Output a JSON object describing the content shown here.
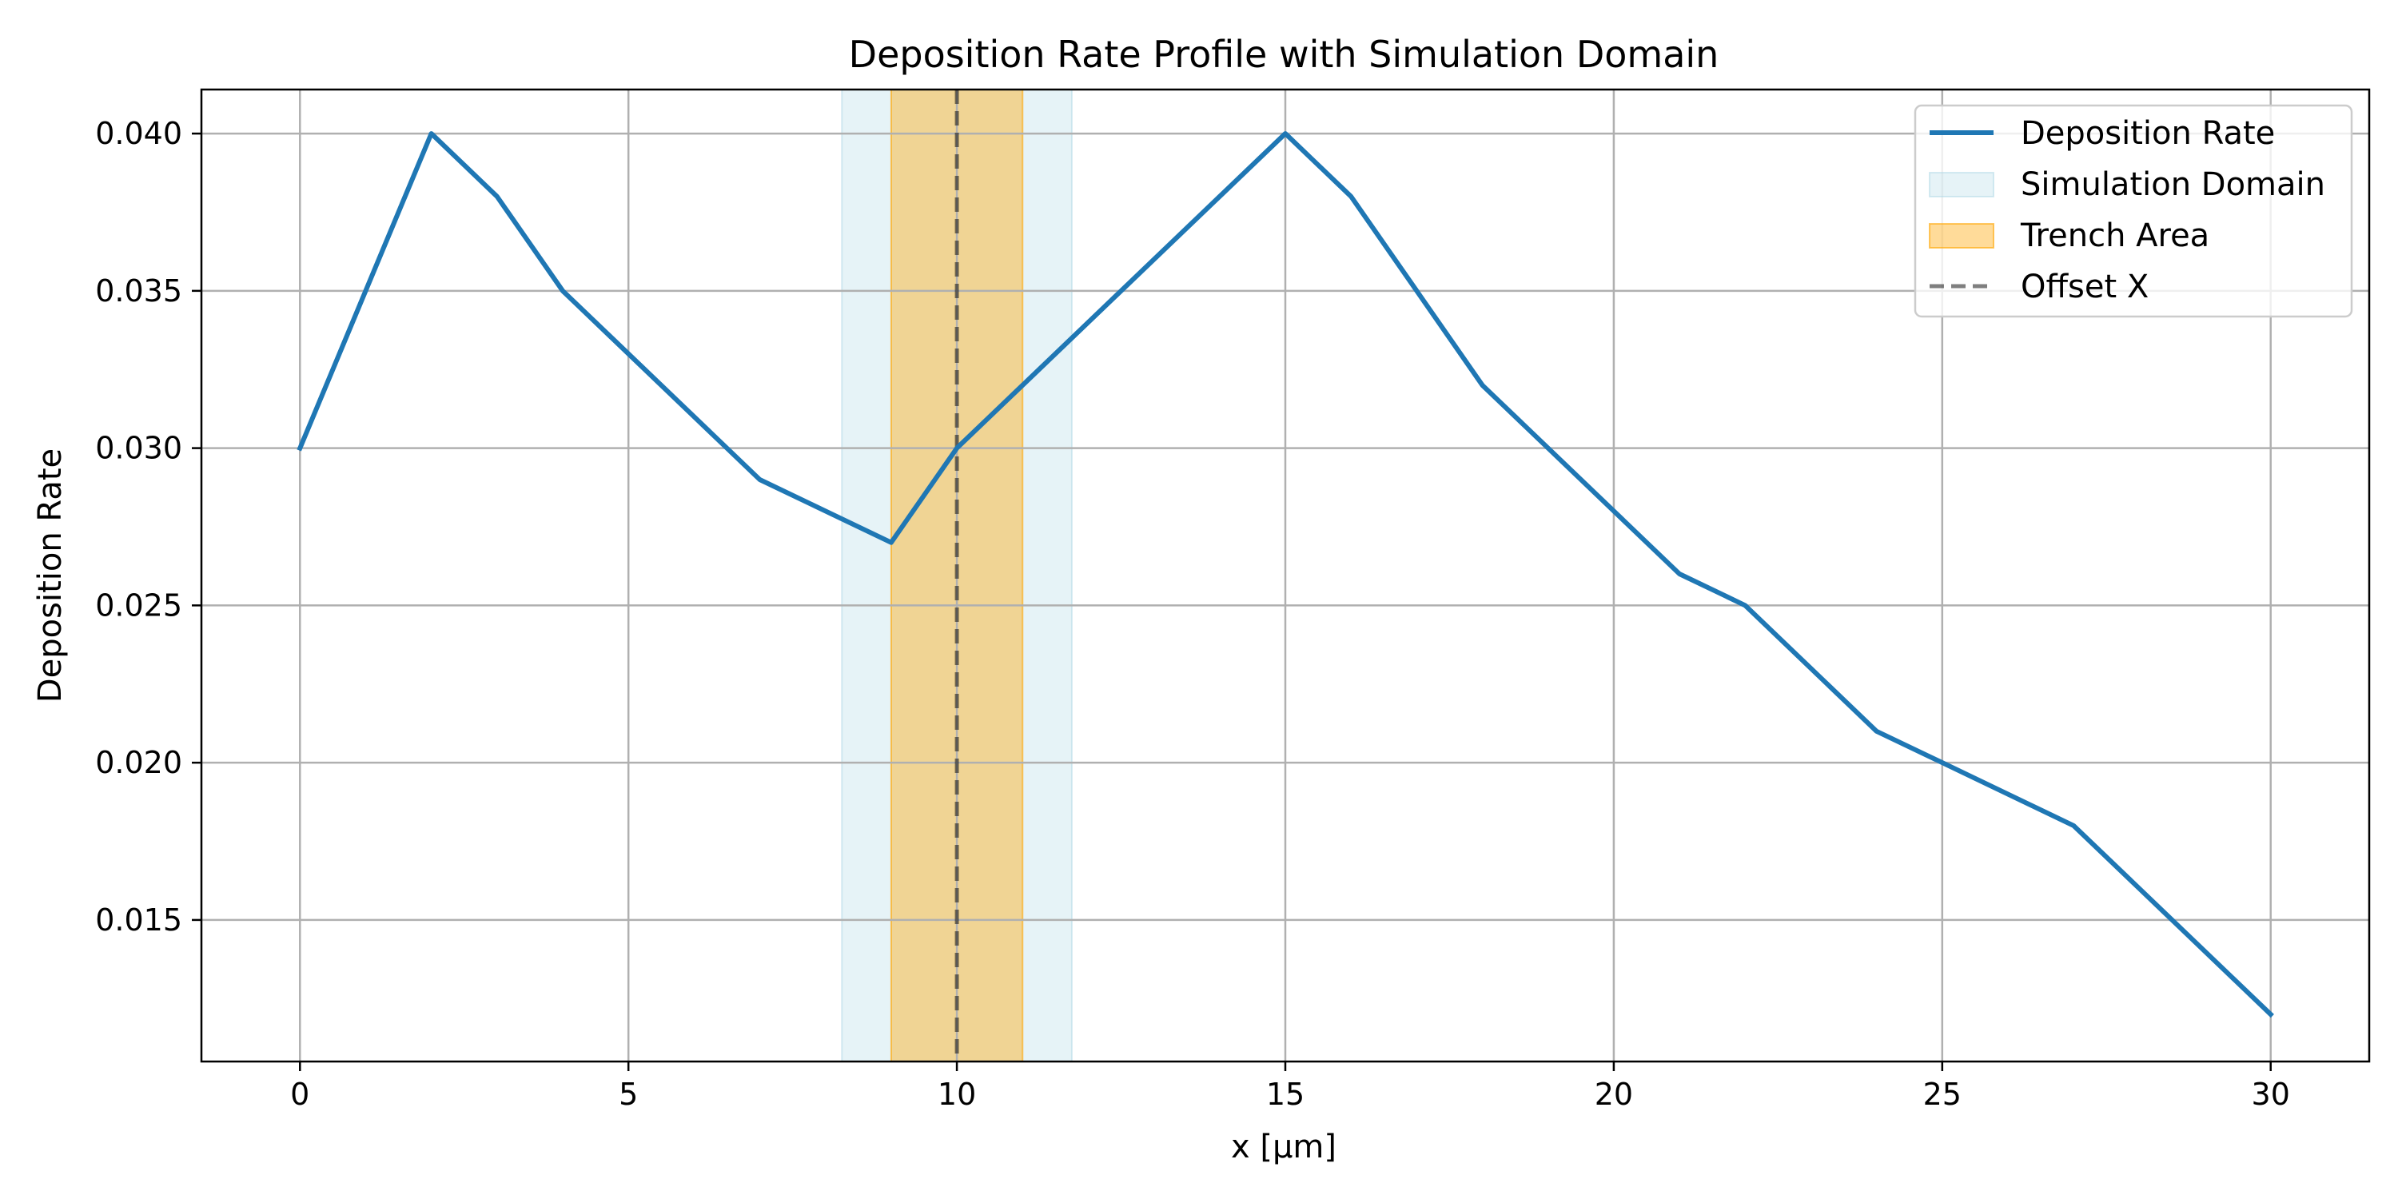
{
  "chart_data": {
    "type": "line",
    "title": "Deposition Rate Profile with Simulation Domain",
    "xlabel": "x [µm]",
    "ylabel": "Deposition Rate",
    "xlim": [
      -1.5,
      31.5
    ],
    "ylim": [
      0.0105,
      0.0414
    ],
    "xticks": [
      0,
      5,
      10,
      15,
      20,
      25,
      30
    ],
    "yticks": [
      0.015,
      0.02,
      0.025,
      0.03,
      0.035,
      0.04
    ],
    "xtick_labels": [
      "0",
      "5",
      "10",
      "15",
      "20",
      "25",
      "30"
    ],
    "ytick_labels": [
      "0.015",
      "0.020",
      "0.025",
      "0.030",
      "0.035",
      "0.040"
    ],
    "grid": true,
    "legend_position": "top-right",
    "series": [
      {
        "name": "Deposition Rate",
        "color": "#1f77b4",
        "x": [
          0,
          2,
          3,
          4,
          7,
          9,
          10,
          15,
          16,
          18,
          21,
          22,
          24,
          25,
          27,
          30
        ],
        "y": [
          0.03,
          0.04,
          0.038,
          0.035,
          0.029,
          0.027,
          0.03,
          0.04,
          0.038,
          0.032,
          0.026,
          0.025,
          0.021,
          0.02,
          0.018,
          0.012
        ]
      }
    ],
    "spans": [
      {
        "name": "Simulation Domain",
        "x0": 8.25,
        "x1": 11.75,
        "color": "#add8e6",
        "opacity": 0.3
      },
      {
        "name": "Trench Area",
        "x0": 9,
        "x1": 11,
        "color": "#ffa500",
        "opacity": 0.4
      }
    ],
    "vlines": [
      {
        "name": "Offset X",
        "x": 10,
        "color": "#000000",
        "opacity": 0.5,
        "style": "dashed"
      }
    ]
  }
}
